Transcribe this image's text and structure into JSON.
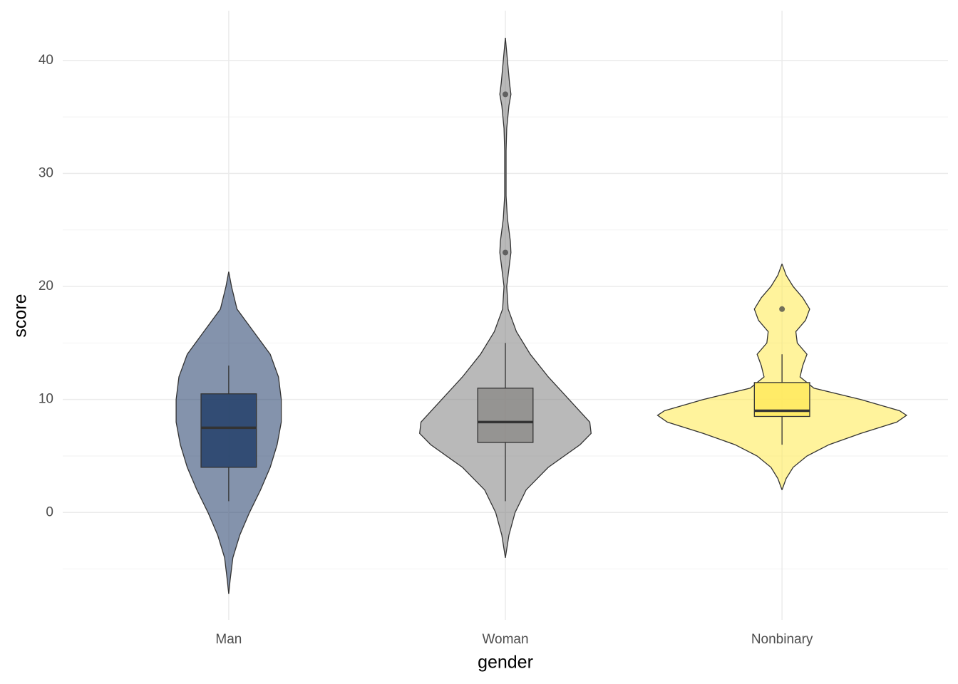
{
  "chart_data": {
    "type": "violin",
    "x_label": "gender",
    "y_label": "score",
    "categories": [
      "Man",
      "Woman",
      "Nonbinary"
    ],
    "ylim": [
      -9.5,
      44.4
    ],
    "yticks": [
      0,
      10,
      20,
      30,
      40
    ],
    "minor_yticks": [
      -5,
      5,
      15,
      25,
      35
    ],
    "grid": true,
    "series": [
      {
        "violin_color": "#1f3a68",
        "box_color": "#233f6a",
        "whisker_low": 1,
        "q1": 4,
        "median": 7.5,
        "q3": 10.5,
        "whisker_high": 13,
        "outliers": [],
        "violin": {
          "y": [
            21.3,
            20,
            18,
            16,
            14,
            12,
            10,
            8,
            6,
            4,
            2,
            0,
            -2,
            -4,
            -6,
            -7.2
          ],
          "width": [
            0,
            0.02,
            0.06,
            0.18,
            0.3,
            0.36,
            0.38,
            0.38,
            0.35,
            0.3,
            0.23,
            0.15,
            0.08,
            0.03,
            0.01,
            0
          ]
        }
      },
      {
        "violin_color": "#808080",
        "box_color": "#8e8d8b",
        "whisker_low": 1,
        "q1": 6.2,
        "median": 8,
        "q3": 11,
        "whisker_high": 15,
        "outliers": [
          37,
          23
        ],
        "violin": {
          "y": [
            42,
            40,
            38,
            37,
            36,
            34,
            32,
            30,
            28,
            26,
            24,
            23,
            22,
            20,
            18,
            16,
            14,
            12,
            10,
            8,
            7,
            6,
            4,
            2,
            0,
            -2,
            -4
          ],
          "width": [
            0,
            0.015,
            0.03,
            0.04,
            0.026,
            0.01,
            0.005,
            0.005,
            0.005,
            0.015,
            0.036,
            0.04,
            0.03,
            0.01,
            0.02,
            0.08,
            0.18,
            0.31,
            0.46,
            0.61,
            0.62,
            0.54,
            0.31,
            0.15,
            0.07,
            0.026,
            0
          ]
        }
      },
      {
        "violin_color": "#ffe94a",
        "box_color": "#ffe95e",
        "whisker_low": 6,
        "q1": 8.5,
        "median": 9,
        "q3": 11.5,
        "whisker_high": 14,
        "outliers": [
          18
        ],
        "violin": {
          "y": [
            22,
            21,
            20,
            19,
            18,
            17,
            16,
            15,
            14,
            13,
            12,
            11,
            10,
            9,
            8.6,
            8,
            7,
            6,
            5,
            4,
            3,
            2
          ],
          "width": [
            0,
            0.03,
            0.08,
            0.15,
            0.2,
            0.17,
            0.1,
            0.11,
            0.18,
            0.15,
            0.13,
            0.23,
            0.57,
            0.85,
            0.9,
            0.83,
            0.57,
            0.34,
            0.18,
            0.08,
            0.03,
            0
          ]
        }
      }
    ]
  }
}
